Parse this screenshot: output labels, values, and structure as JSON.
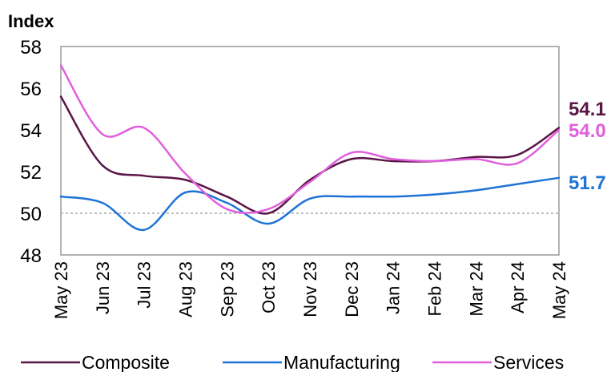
{
  "chart_data": {
    "type": "line",
    "ylabel": "Index",
    "ylim": [
      48,
      58
    ],
    "yticks": [
      48,
      50,
      52,
      54,
      56,
      58
    ],
    "reference_line": 50,
    "grid": false,
    "legend_position": "bottom",
    "categories": [
      "May 23",
      "Jun 23",
      "Jul 23",
      "Aug 23",
      "Sep 23",
      "Oct 23",
      "Nov 23",
      "Dec 23",
      "Jan 24",
      "Feb 24",
      "Mar 24",
      "Apr 24",
      "May 24"
    ],
    "series": [
      {
        "name": "Composite",
        "color": "#5a1646",
        "values": [
          55.6,
          52.3,
          51.8,
          51.6,
          50.8,
          50.0,
          51.6,
          52.6,
          52.5,
          52.5,
          52.7,
          52.8,
          54.1
        ],
        "end_label": "54.1"
      },
      {
        "name": "Manufacturing",
        "color": "#1f73d6",
        "values": [
          50.8,
          50.5,
          49.2,
          51.0,
          50.5,
          49.5,
          50.7,
          50.8,
          50.8,
          50.9,
          51.1,
          51.4,
          51.7
        ],
        "end_label": "51.7"
      },
      {
        "name": "Services",
        "color": "#e060dc",
        "values": [
          57.1,
          53.8,
          54.1,
          51.9,
          50.2,
          50.2,
          51.5,
          52.9,
          52.6,
          52.5,
          52.6,
          52.4,
          54.0
        ],
        "end_label": "54.0"
      }
    ]
  }
}
